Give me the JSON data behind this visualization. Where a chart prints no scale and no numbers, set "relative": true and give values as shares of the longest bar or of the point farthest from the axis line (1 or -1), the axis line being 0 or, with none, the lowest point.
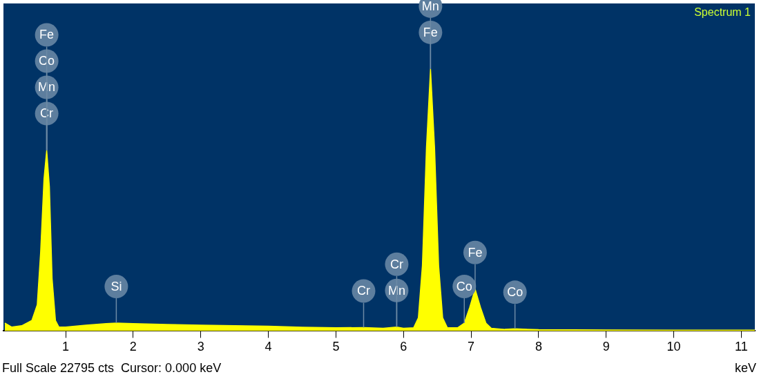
{
  "chart_data": {
    "type": "area",
    "relative": true,
    "xlabel": "keV",
    "color": "#ffff00",
    "xlim": [
      0.08,
      11.2
    ],
    "xticks": [
      1,
      2,
      3,
      4,
      5,
      6,
      7,
      8,
      9,
      10,
      11
    ],
    "grid": false,
    "legend": false,
    "x": [
      0.1,
      0.2,
      0.35,
      0.5,
      0.58,
      0.63,
      0.68,
      0.72,
      0.76,
      0.8,
      0.85,
      0.9,
      1.0,
      1.3,
      1.6,
      1.75,
      2.0,
      2.5,
      3.0,
      3.5,
      4.0,
      4.5,
      5.0,
      5.41,
      5.7,
      5.9,
      6.0,
      6.15,
      6.22,
      6.28,
      6.34,
      6.4,
      6.46,
      6.52,
      6.58,
      6.65,
      6.8,
      6.9,
      6.98,
      7.06,
      7.14,
      7.22,
      7.3,
      7.5,
      7.65,
      8.0,
      9.0,
      10.0,
      11.0,
      11.2
    ],
    "values": [
      0.03,
      0.015,
      0.02,
      0.04,
      0.1,
      0.3,
      0.58,
      0.69,
      0.55,
      0.2,
      0.04,
      0.015,
      0.015,
      0.022,
      0.028,
      0.03,
      0.028,
      0.025,
      0.022,
      0.02,
      0.018,
      0.014,
      0.012,
      0.013,
      0.01,
      0.015,
      0.01,
      0.012,
      0.05,
      0.25,
      0.7,
      1,
      0.7,
      0.25,
      0.05,
      0.012,
      0.012,
      0.03,
      0.09,
      0.16,
      0.09,
      0.03,
      0.01,
      0.006,
      0.008,
      0.005,
      0.004,
      0.003,
      0.003,
      0.003
    ],
    "annotations": [
      "Spectrum 1",
      "Full Scale 22795 cts  Cursor: 0.000 keV",
      {
        "text": "Cr",
        "x": 0.72,
        "y": 0.69
      },
      {
        "text": "Mn",
        "x": 0.72,
        "y": 0.69
      },
      {
        "text": "Co",
        "x": 0.72,
        "y": 0.69
      },
      {
        "text": "Fe",
        "x": 0.72,
        "y": 0.69
      },
      {
        "text": "Si",
        "x": 1.75,
        "y": 0.03
      },
      {
        "text": "Cr",
        "x": 5.41,
        "y": 0.013
      },
      {
        "text": "Mn",
        "x": 5.9,
        "y": 0.015
      },
      {
        "text": "Cr",
        "x": 5.9,
        "y": 0.015
      },
      {
        "text": "Fe",
        "x": 6.4,
        "y": 1
      },
      {
        "text": "Mn",
        "x": 6.4,
        "y": 1
      },
      {
        "text": "Co",
        "x": 6.9,
        "y": 0.03
      },
      {
        "text": "Fe",
        "x": 7.06,
        "y": 0.16
      },
      {
        "text": "Co",
        "x": 7.65,
        "y": 0.008
      }
    ]
  }
}
